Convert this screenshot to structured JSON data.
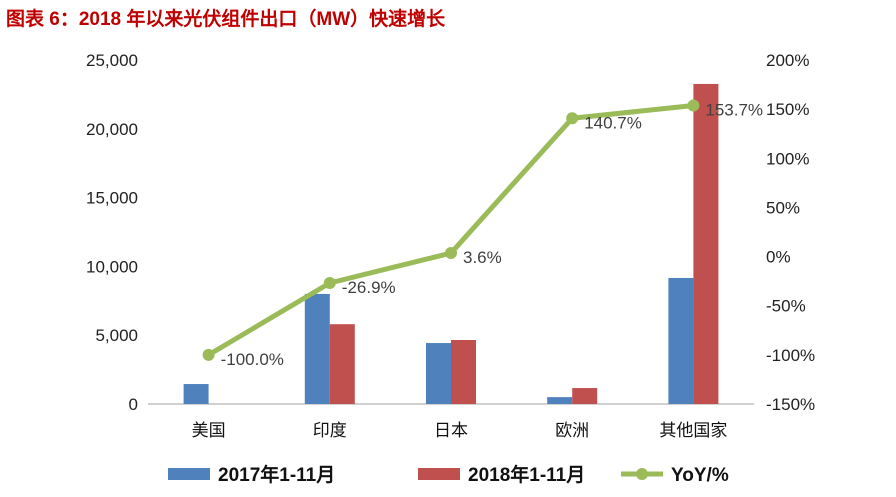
{
  "title": "图表 6：2018 年以来光伏组件出口（MW）快速增长",
  "chart_data": {
    "type": "bar+line",
    "title": "图表 6：2018 年以来光伏组件出口（MW）快速增长",
    "categories": [
      "美国",
      "印度",
      "日本",
      "欧洲",
      "其他国家"
    ],
    "series": [
      {
        "name": "2017年1-11月",
        "type": "bar",
        "axis": "left",
        "color": "#4f81bd",
        "values": [
          1450,
          8000,
          4430,
          500,
          9160
        ]
      },
      {
        "name": "2018年1-11月",
        "type": "bar",
        "axis": "left",
        "color": "#c0504d",
        "values": [
          0,
          5800,
          4650,
          1160,
          23260
        ]
      },
      {
        "name": "YoY/%",
        "type": "line",
        "axis": "right",
        "color": "#9bbb59",
        "values": [
          -100.0,
          -26.9,
          3.6,
          140.7,
          153.7
        ],
        "data_labels": [
          "-100.0%",
          "-26.9%",
          "3.6%",
          "140.7%",
          "153.7%"
        ]
      }
    ],
    "left_axis": {
      "ylim": [
        0,
        25000
      ],
      "ticks": [
        "0",
        "5,000",
        "10,000",
        "15,000",
        "20,000",
        "25,000"
      ]
    },
    "right_axis": {
      "ylim": [
        -150,
        200
      ],
      "ticks": [
        "-150%",
        "-100%",
        "-50%",
        "0%",
        "50%",
        "100%",
        "150%",
        "200%"
      ]
    },
    "grid": false,
    "legend": "bottom"
  }
}
